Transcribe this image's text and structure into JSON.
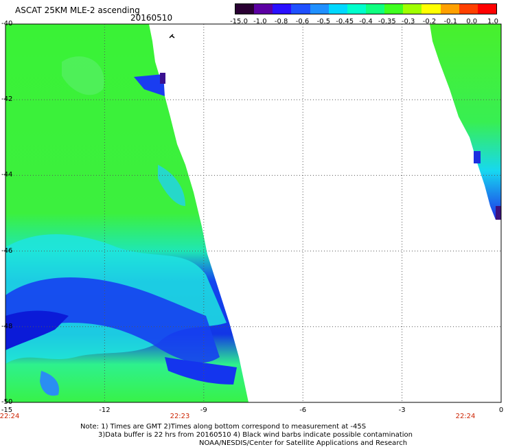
{
  "header": {
    "title": "ASCAT 25KM MLE-2 ascending",
    "date": "20160510"
  },
  "colorbar": {
    "colors": [
      "#2a0033",
      "#5c00a3",
      "#2a10ff",
      "#1f50ff",
      "#2090ff",
      "#00d8ff",
      "#00ffcc",
      "#10ff80",
      "#40ff20",
      "#a0ff00",
      "#ffff00",
      "#ffa000",
      "#ff4000",
      "#ff0000"
    ],
    "ticks": [
      "-15.0",
      "-1.0",
      "-0.8",
      "-0.6",
      "-0.5",
      "-0.45",
      "-0.4",
      "-0.35",
      "-0.3",
      "-0.2",
      "-0.1",
      "0.0",
      "1.0"
    ]
  },
  "axes": {
    "lat_labels": [
      "-40",
      "-42",
      "-44",
      "-46",
      "-48",
      "-50"
    ],
    "lon_labels": [
      "-15",
      "-12",
      "-9",
      "-6",
      "-3",
      "0"
    ],
    "time_labels": [
      "22:24",
      "22:23",
      "22:24"
    ]
  },
  "notes": {
    "line1": "Note: 1) Times are GMT 2)Times along bottom correspond to measurement at -45S",
    "line2": "3)Data buffer is 22 hrs from 20160510 4) Black wind barbs indicate possible contamination",
    "line3": "NOAA/NESDIS/Center for Satellite Applications and Research"
  },
  "map": {
    "lon_range": [
      -15,
      0
    ],
    "lat_range": [
      -50,
      -40
    ],
    "grid": true,
    "swaths": [
      "left-swath",
      "right-swath"
    ]
  }
}
